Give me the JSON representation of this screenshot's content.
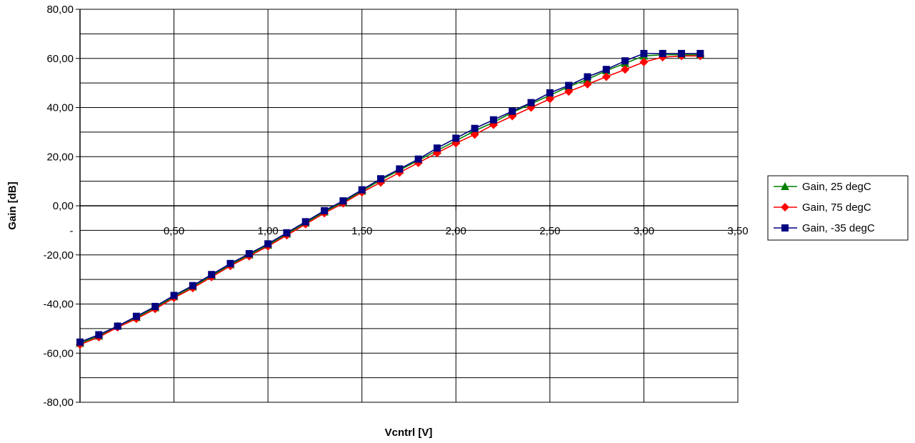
{
  "chart_data": {
    "type": "line",
    "title": "",
    "xlabel": "Vcntrl [V]",
    "ylabel": "Gain [dB]",
    "xlim": [
      0,
      3.5
    ],
    "ylim": [
      -80,
      80
    ],
    "grid": true,
    "legend_position": "right",
    "x_ticks": [
      {
        "value": 0.5,
        "label": "0,50"
      },
      {
        "value": 1.0,
        "label": "1,00"
      },
      {
        "value": 1.5,
        "label": "1,50"
      },
      {
        "value": 2.0,
        "label": "2,00"
      },
      {
        "value": 2.5,
        "label": "2,50"
      },
      {
        "value": 3.0,
        "label": "3,00"
      },
      {
        "value": 3.5,
        "label": "3,50"
      }
    ],
    "x_origin_label": "-",
    "y_ticks": [
      {
        "value": 80,
        "label": "80,00"
      },
      {
        "value": 60,
        "label": "60,00"
      },
      {
        "value": 40,
        "label": "40,00"
      },
      {
        "value": 20,
        "label": "20,00"
      },
      {
        "value": 0,
        "label": "0,00"
      },
      {
        "value": -20,
        "label": "-20,00"
      },
      {
        "value": -40,
        "label": "-40,00"
      },
      {
        "value": -60,
        "label": "-60,00"
      },
      {
        "value": -80,
        "label": "-80,00"
      }
    ],
    "x": [
      0.0,
      0.1,
      0.2,
      0.3,
      0.4,
      0.5,
      0.6,
      0.7,
      0.8,
      0.9,
      1.0,
      1.1,
      1.2,
      1.3,
      1.4,
      1.5,
      1.6,
      1.7,
      1.8,
      1.9,
      2.0,
      2.1,
      2.2,
      2.3,
      2.4,
      2.5,
      2.6,
      2.7,
      2.8,
      2.9,
      3.0,
      3.1,
      3.2,
      3.3
    ],
    "series": [
      {
        "name": "Gain, 25 degC",
        "color": "#008000",
        "marker": "triangle",
        "values": [
          -56.0,
          -53.0,
          -49.0,
          -45.5,
          -41.5,
          -37.0,
          -33.0,
          -28.5,
          -24.0,
          -20.0,
          -16.0,
          -11.5,
          -7.0,
          -2.5,
          1.5,
          6.0,
          10.5,
          14.5,
          18.5,
          22.5,
          26.5,
          30.5,
          34.0,
          38.0,
          41.5,
          45.0,
          48.5,
          51.5,
          55.0,
          58.0,
          61.0,
          61.5,
          61.5,
          61.5
        ]
      },
      {
        "name": "Gain, 75 degC",
        "color": "#ff0000",
        "marker": "diamond",
        "values": [
          -56.5,
          -53.5,
          -49.5,
          -46.0,
          -42.0,
          -37.5,
          -33.5,
          -29.0,
          -24.5,
          -20.5,
          -16.5,
          -12.0,
          -7.5,
          -3.0,
          1.0,
          5.5,
          9.5,
          13.5,
          17.5,
          21.5,
          25.5,
          29.0,
          33.0,
          36.5,
          40.0,
          43.5,
          46.5,
          49.5,
          52.5,
          55.5,
          58.5,
          60.5,
          61.0,
          61.0
        ]
      },
      {
        "name": "Gain, -35 degC",
        "color": "#000080",
        "marker": "square",
        "values": [
          -55.5,
          -52.5,
          -49.0,
          -45.0,
          -41.0,
          -36.5,
          -32.5,
          -28.0,
          -23.5,
          -19.5,
          -15.5,
          -11.0,
          -6.5,
          -2.0,
          2.0,
          6.5,
          11.0,
          15.0,
          19.0,
          23.5,
          27.5,
          31.5,
          35.0,
          38.5,
          42.0,
          46.0,
          49.0,
          52.5,
          55.5,
          59.0,
          62.0,
          62.0,
          62.0,
          62.0
        ]
      }
    ]
  }
}
